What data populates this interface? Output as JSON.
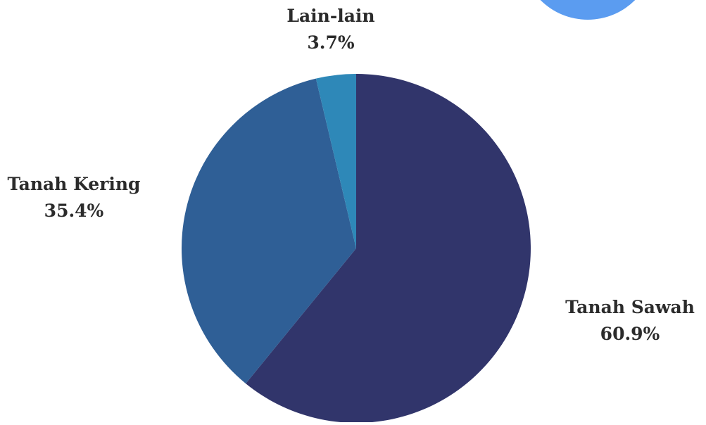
{
  "chart_data": {
    "type": "pie",
    "categories": [
      "Tanah Sawah",
      "Tanah Kering",
      "Lain-lain"
    ],
    "values": [
      60.9,
      35.4,
      3.7
    ],
    "value_labels": [
      "60.9%",
      "35.4%",
      "3.7%"
    ],
    "colors": [
      "#31356b",
      "#2f5f96",
      "#2e88b8"
    ],
    "start_angle_deg": 0,
    "direction": "clockwise",
    "title": "",
    "legend": "none"
  },
  "decoration": {
    "corner_circle_color": "#5b9cf0"
  }
}
